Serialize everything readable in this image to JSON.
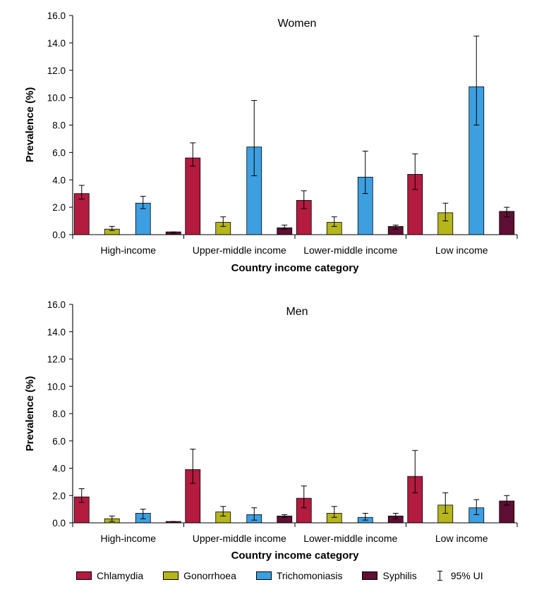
{
  "chart_data": [
    {
      "type": "bar",
      "title": "Women",
      "xlabel": "Country income category",
      "ylabel": "Prevalence (%)",
      "ylim": [
        0,
        16
      ],
      "yticks": [
        "0.0",
        "2.0",
        "4.0",
        "6.0",
        "8.0",
        "10.0",
        "12.0",
        "14.0",
        "16.0"
      ],
      "categories": [
        "High-income",
        "Upper-middle income",
        "Lower-middle income",
        "Low income"
      ],
      "series": [
        {
          "name": "Chlamydia",
          "values": [
            3.0,
            5.6,
            2.5,
            4.4
          ],
          "lower": [
            2.6,
            5.0,
            1.9,
            3.3
          ],
          "upper": [
            3.6,
            6.7,
            3.2,
            5.9
          ]
        },
        {
          "name": "Gonorrhoea",
          "values": [
            0.4,
            0.9,
            0.9,
            1.6
          ],
          "lower": [
            0.3,
            0.6,
            0.6,
            1.0
          ],
          "upper": [
            0.6,
            1.3,
            1.3,
            2.3
          ]
        },
        {
          "name": "Trichomoniasis",
          "values": [
            2.3,
            6.4,
            4.2,
            10.8
          ],
          "lower": [
            1.9,
            4.3,
            3.0,
            8.0
          ],
          "upper": [
            2.8,
            9.8,
            6.1,
            14.5
          ]
        },
        {
          "name": "Syphilis",
          "values": [
            0.2,
            0.5,
            0.6,
            1.7
          ],
          "lower": [
            0.1,
            0.4,
            0.4,
            1.3
          ],
          "upper": [
            0.2,
            0.7,
            0.7,
            2.0
          ]
        }
      ]
    },
    {
      "type": "bar",
      "title": "Men",
      "xlabel": "Country income category",
      "ylabel": "Prevalence (%)",
      "ylim": [
        0,
        16
      ],
      "yticks": [
        "0.0",
        "2.0",
        "4.0",
        "6.0",
        "8.0",
        "10.0",
        "12.0",
        "14.0",
        "16.0"
      ],
      "categories": [
        "High-income",
        "Upper-middle income",
        "Lower-middle income",
        "Low income"
      ],
      "series": [
        {
          "name": "Chlamydia",
          "values": [
            1.9,
            3.9,
            1.8,
            3.4
          ],
          "lower": [
            1.5,
            2.9,
            1.1,
            2.2
          ],
          "upper": [
            2.5,
            5.4,
            2.7,
            5.3
          ]
        },
        {
          "name": "Gonorrhoea",
          "values": [
            0.3,
            0.8,
            0.7,
            1.3
          ],
          "lower": [
            0.1,
            0.5,
            0.4,
            0.7
          ],
          "upper": [
            0.5,
            1.2,
            1.2,
            2.2
          ]
        },
        {
          "name": "Trichomoniasis",
          "values": [
            0.7,
            0.6,
            0.4,
            1.1
          ],
          "lower": [
            0.3,
            0.2,
            0.2,
            0.6
          ],
          "upper": [
            1.0,
            1.1,
            0.7,
            1.7
          ]
        },
        {
          "name": "Syphilis",
          "values": [
            0.1,
            0.5,
            0.5,
            1.6
          ],
          "lower": [
            0.0,
            0.4,
            0.3,
            1.3
          ],
          "upper": [
            0.1,
            0.6,
            0.7,
            2.0
          ]
        }
      ]
    }
  ],
  "colors": {
    "Chlamydia": "#b31b3f",
    "Gonorrhoea": "#b5b51c",
    "Trichomoniasis": "#3d9fe0",
    "Syphilis": "#5e0f33"
  },
  "legend": {
    "items": [
      "Chlamydia",
      "Gonorrhoea",
      "Trichomoniasis",
      "Syphilis"
    ],
    "ui_label": "95% UI"
  }
}
